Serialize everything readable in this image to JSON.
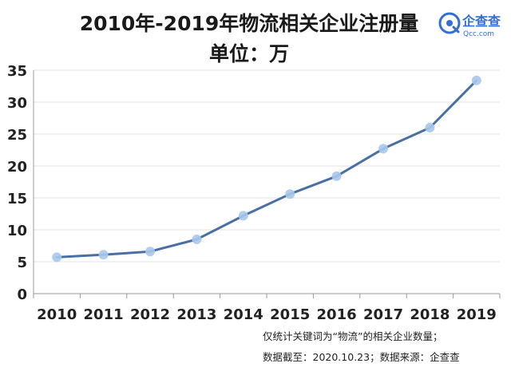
{
  "chart_data": {
    "type": "line",
    "title": "2010年-2019年物流相关企业注册量",
    "subtitle": "单位：万",
    "categories": [
      "2010",
      "2011",
      "2012",
      "2013",
      "2014",
      "2015",
      "2016",
      "2017",
      "2018",
      "2019"
    ],
    "series": [
      {
        "name": "物流相关企业注册量",
        "values": [
          5.7,
          6.1,
          6.6,
          8.5,
          12.2,
          15.6,
          18.4,
          22.7,
          26.0,
          33.4
        ]
      }
    ],
    "xlabel": "",
    "ylabel": "",
    "ylim": [
      0,
      35
    ],
    "yticks": [
      0,
      5,
      10,
      15,
      20,
      25,
      30,
      35
    ],
    "grid": true,
    "annotations": [
      "仅统计关键词为“物流”的相关企业数量；",
      "数据截至：2020.10.23；数据来源：企查查"
    ]
  },
  "logo": {
    "name": "企查查",
    "sub": "Qcc.com"
  },
  "colors": {
    "line": "#4a6fa5",
    "marker": "#a9c8ec",
    "grid": "#e3e3e3",
    "axis": "#999999"
  }
}
